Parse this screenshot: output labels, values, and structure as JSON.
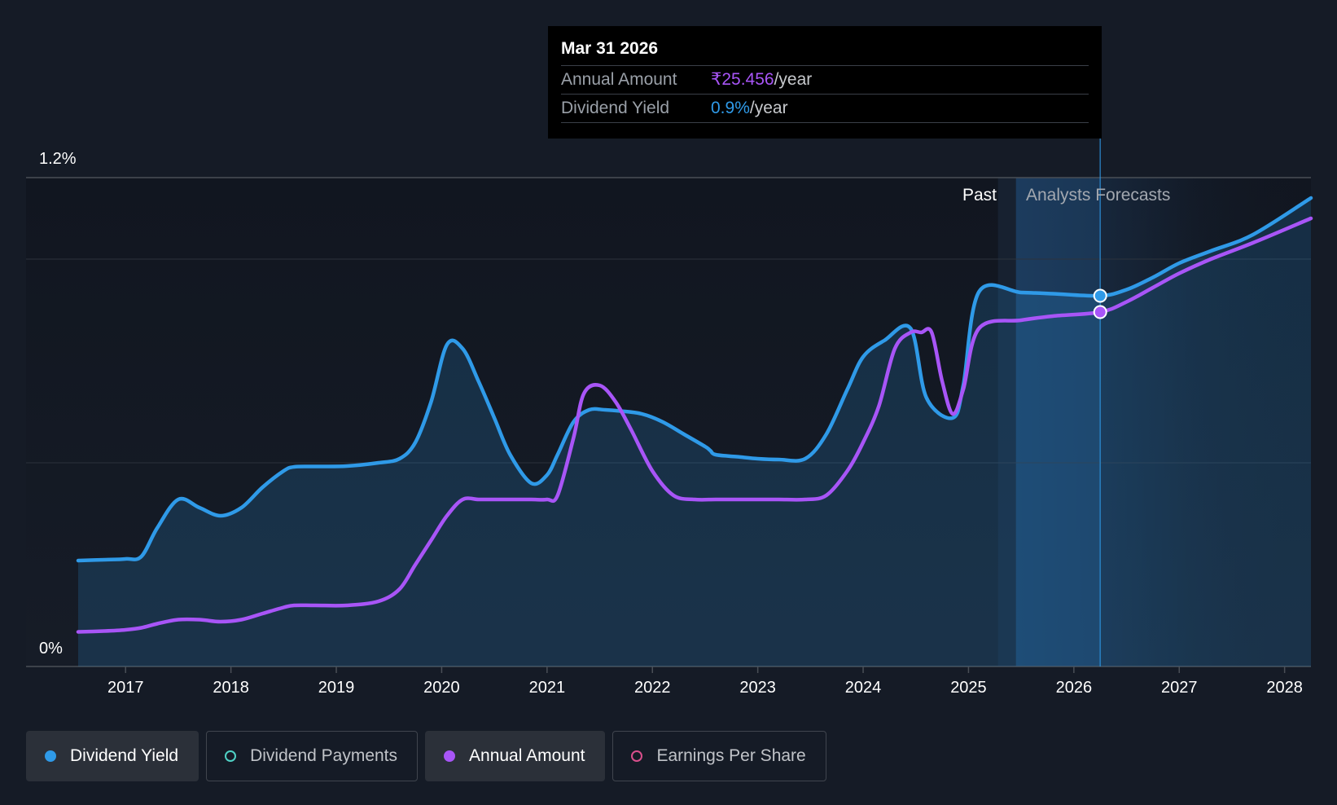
{
  "tooltip": {
    "date": "Mar 31 2026",
    "rows": [
      {
        "label": "Annual Amount",
        "value": "₹25.456",
        "unit": "/year",
        "color": "#a855f7"
      },
      {
        "label": "Dividend Yield",
        "value": "0.9%",
        "unit": "/year",
        "color": "#2f9ae8"
      }
    ]
  },
  "regions": {
    "past": "Past",
    "forecast": "Analysts Forecasts"
  },
  "legend": [
    {
      "label": "Dividend Yield",
      "color": "#2f9ae8",
      "active": true,
      "icon": "filled-circle-icon"
    },
    {
      "label": "Dividend Payments",
      "color": "#4fd1c5",
      "active": false,
      "icon": "hollow-circle-icon"
    },
    {
      "label": "Annual Amount",
      "color": "#a855f7",
      "active": true,
      "icon": "filled-circle-icon"
    },
    {
      "label": "Earnings Per Share",
      "color": "#d94f8c",
      "active": false,
      "icon": "hollow-circle-icon"
    }
  ],
  "chart_data": {
    "type": "line",
    "y_axis_labels": [
      "1.2%",
      "0%"
    ],
    "ylim": [
      0,
      1.2
    ],
    "xlim": [
      2016.55,
      2028.25
    ],
    "x_ticks": [
      "2017",
      "2018",
      "2019",
      "2020",
      "2021",
      "2022",
      "2023",
      "2024",
      "2025",
      "2026",
      "2027",
      "2028"
    ],
    "grid": true,
    "forecast_start": 2025.45,
    "highlight_x": 2026.25,
    "series": [
      {
        "name": "Dividend Yield",
        "color": "#2f9ae8",
        "fill": true,
        "x": [
          2016.55,
          2016.8,
          2017.0,
          2017.15,
          2017.3,
          2017.5,
          2017.7,
          2017.9,
          2018.1,
          2018.3,
          2018.5,
          2018.6,
          2018.8,
          2019.1,
          2019.4,
          2019.6,
          2019.75,
          2019.9,
          2020.05,
          2020.2,
          2020.35,
          2020.5,
          2020.65,
          2020.85,
          2021.0,
          2021.1,
          2021.25,
          2021.4,
          2021.55,
          2021.7,
          2021.9,
          2022.1,
          2022.3,
          2022.5,
          2022.55,
          2022.6,
          2022.8,
          2023.0,
          2023.2,
          2023.45,
          2023.65,
          2023.85,
          2024.0,
          2024.2,
          2024.45,
          2024.6,
          2024.85,
          2024.95,
          2025.1,
          2025.5,
          2025.8,
          2026.25,
          2026.5,
          2026.75,
          2027.0,
          2027.3,
          2027.7,
          2028.25
        ],
        "y": [
          0.26,
          0.262,
          0.264,
          0.27,
          0.34,
          0.41,
          0.39,
          0.37,
          0.39,
          0.44,
          0.48,
          0.49,
          0.491,
          0.492,
          0.5,
          0.51,
          0.55,
          0.65,
          0.79,
          0.78,
          0.7,
          0.61,
          0.52,
          0.45,
          0.47,
          0.52,
          0.6,
          0.63,
          0.63,
          0.627,
          0.62,
          0.6,
          0.57,
          0.54,
          0.53,
          0.52,
          0.515,
          0.51,
          0.508,
          0.51,
          0.57,
          0.68,
          0.76,
          0.8,
          0.83,
          0.66,
          0.61,
          0.69,
          0.92,
          0.918,
          0.915,
          0.91,
          0.925,
          0.955,
          0.99,
          1.02,
          1.06,
          1.15
        ]
      },
      {
        "name": "Annual Amount",
        "color": "#a855f7",
        "fill": false,
        "x": [
          2016.55,
          2016.8,
          2017.0,
          2017.15,
          2017.3,
          2017.5,
          2017.7,
          2017.9,
          2018.1,
          2018.3,
          2018.5,
          2018.6,
          2018.8,
          2019.1,
          2019.4,
          2019.6,
          2019.75,
          2019.9,
          2020.05,
          2020.2,
          2020.35,
          2020.5,
          2020.65,
          2020.85,
          2021.0,
          2021.1,
          2021.25,
          2021.35,
          2021.5,
          2021.65,
          2021.8,
          2022.0,
          2022.2,
          2022.4,
          2022.6,
          2022.8,
          2023.0,
          2023.2,
          2023.45,
          2023.65,
          2023.85,
          2024.0,
          2024.15,
          2024.3,
          2024.45,
          2024.55,
          2024.65,
          2024.75,
          2024.85,
          2024.95,
          2025.1,
          2025.5,
          2025.8,
          2026.25,
          2026.5,
          2026.75,
          2027.0,
          2027.3,
          2027.7,
          2028.25
        ],
        "y": [
          0.085,
          0.087,
          0.09,
          0.095,
          0.105,
          0.115,
          0.115,
          0.11,
          0.115,
          0.13,
          0.145,
          0.15,
          0.15,
          0.15,
          0.16,
          0.19,
          0.25,
          0.31,
          0.37,
          0.41,
          0.41,
          0.41,
          0.41,
          0.41,
          0.41,
          0.42,
          0.56,
          0.67,
          0.69,
          0.65,
          0.58,
          0.48,
          0.42,
          0.41,
          0.41,
          0.41,
          0.41,
          0.41,
          0.41,
          0.42,
          0.48,
          0.55,
          0.64,
          0.78,
          0.82,
          0.82,
          0.82,
          0.7,
          0.62,
          0.68,
          0.83,
          0.85,
          0.86,
          0.87,
          0.895,
          0.93,
          0.965,
          1.0,
          1.04,
          1.1
        ]
      }
    ]
  }
}
